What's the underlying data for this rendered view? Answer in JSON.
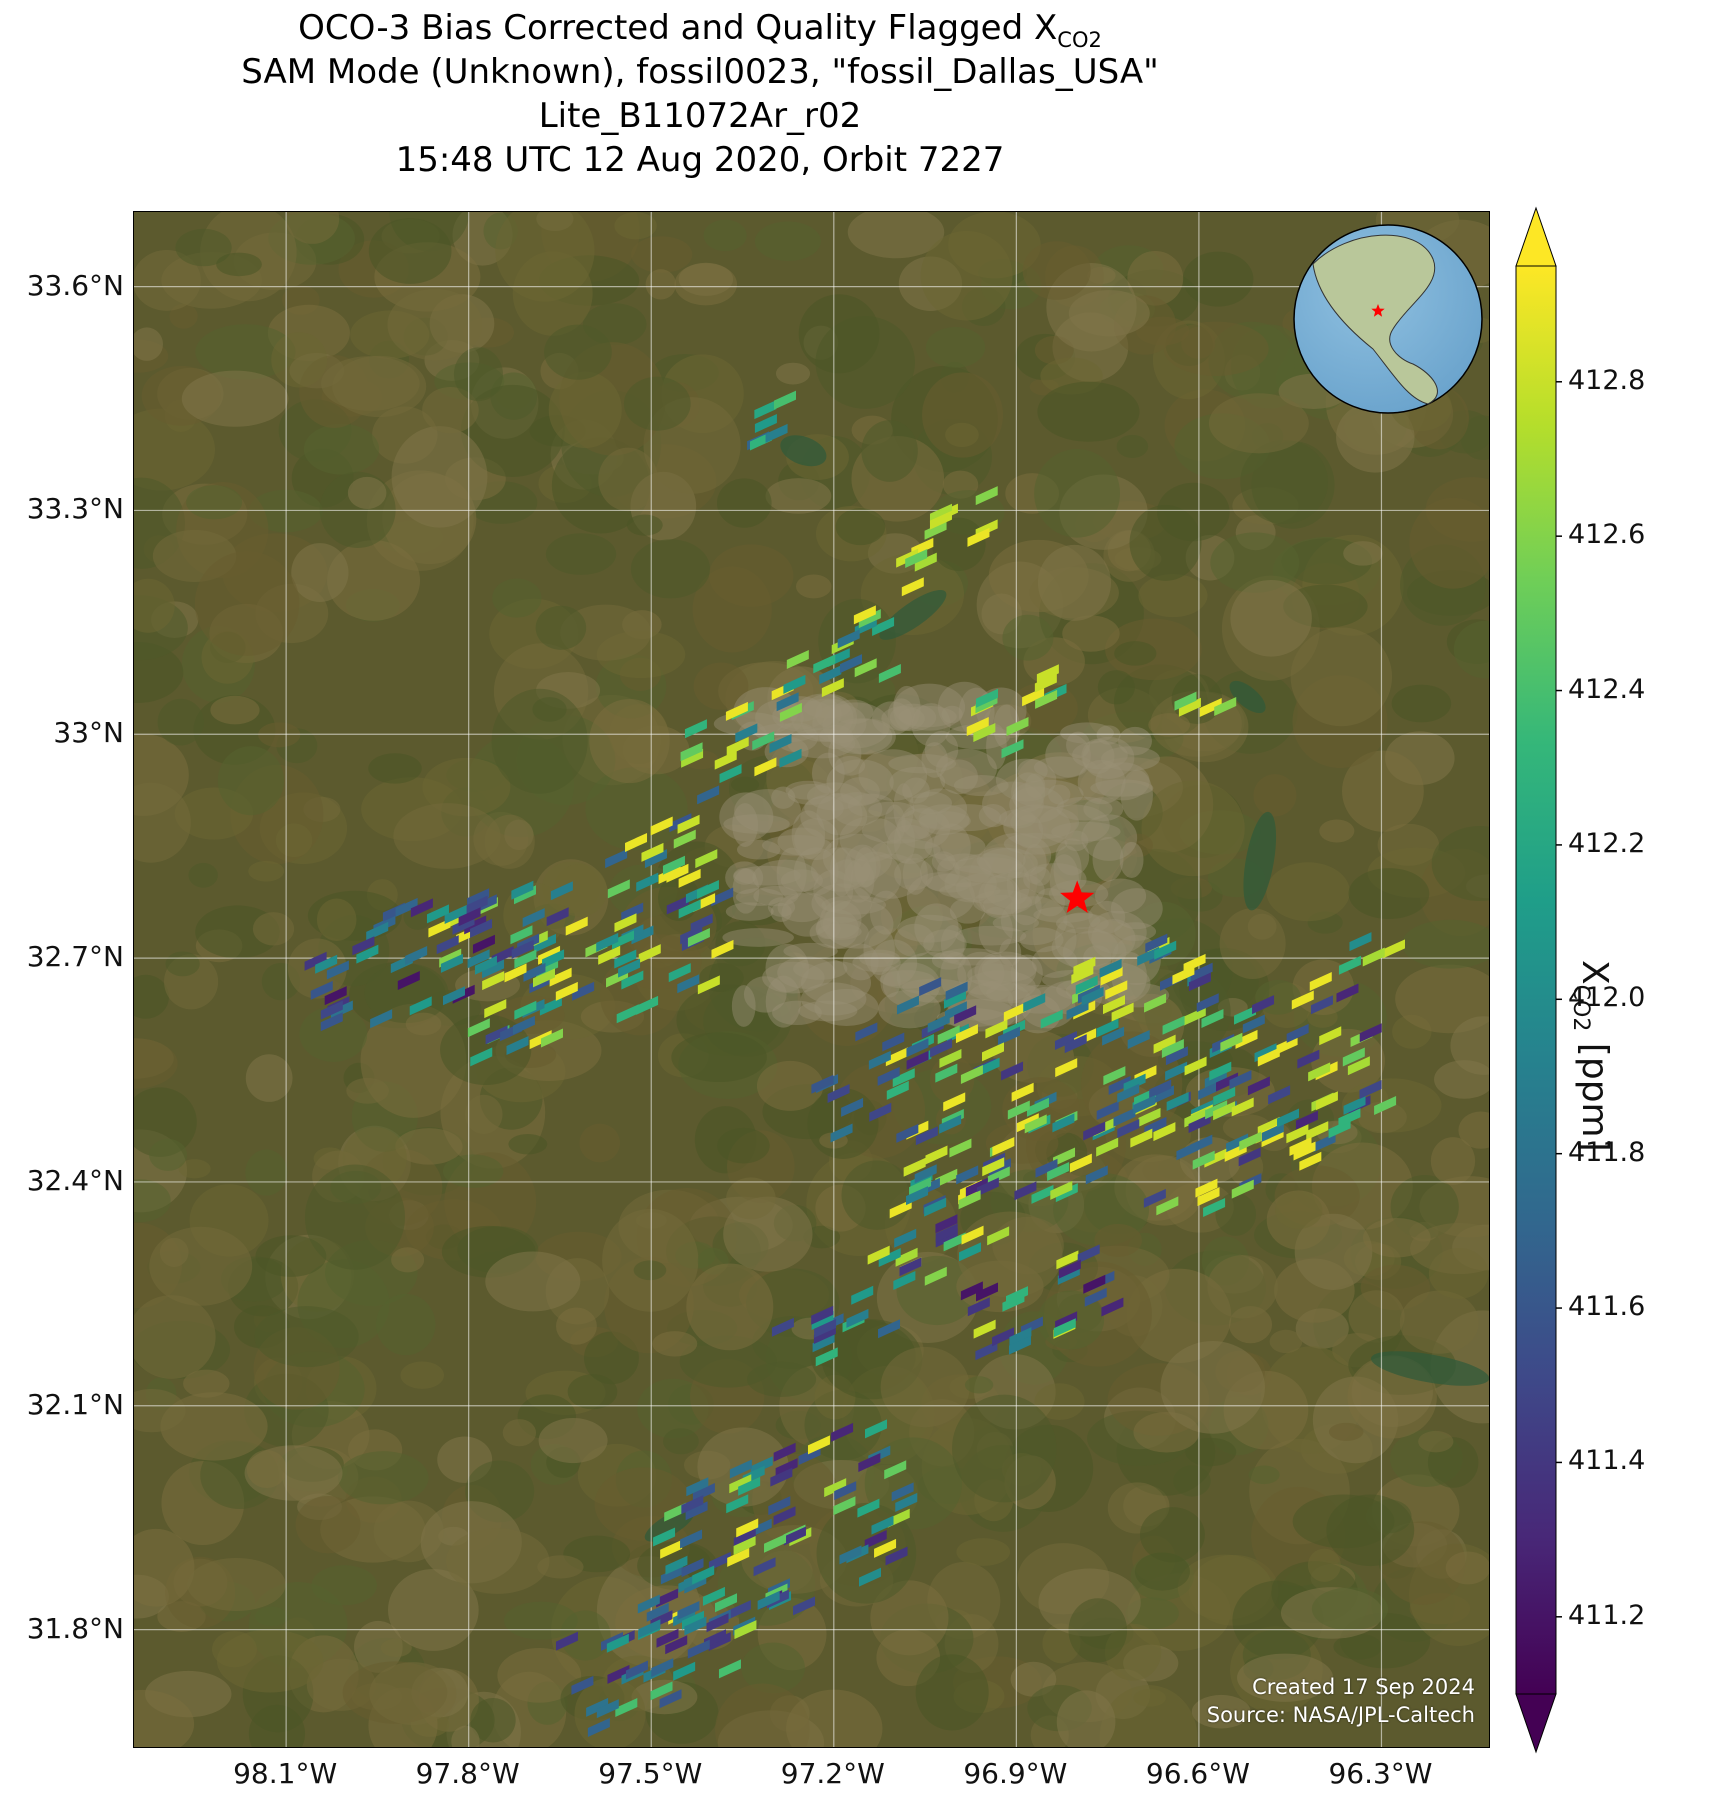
{
  "title": {
    "line1_prefix": "OCO-3 Bias Corrected and Quality Flagged X",
    "line1_sub": "CO2",
    "line2": "SAM Mode (Unknown), fossil0023, \"fossil_Dallas_USA\"",
    "line3": "Lite_B11072Ar_r02",
    "line4": "15:48 UTC 12 Aug 2020, Orbit 7227"
  },
  "map": {
    "lon_range": [
      -98.35,
      -96.12
    ],
    "lat_range": [
      31.64,
      33.7
    ],
    "lat_ticks": [
      {
        "value": 33.6,
        "label": "33.6°N"
      },
      {
        "value": 33.3,
        "label": "33.3°N"
      },
      {
        "value": 33.0,
        "label": "33°N"
      },
      {
        "value": 32.7,
        "label": "32.7°N"
      },
      {
        "value": 32.4,
        "label": "32.4°N"
      },
      {
        "value": 32.1,
        "label": "32.1°N"
      },
      {
        "value": 31.8,
        "label": "31.8°N"
      }
    ],
    "lon_ticks": [
      {
        "value": -98.1,
        "label": "98.1°W"
      },
      {
        "value": -97.8,
        "label": "97.8°W"
      },
      {
        "value": -97.5,
        "label": "97.5°W"
      },
      {
        "value": -97.2,
        "label": "97.2°W"
      },
      {
        "value": -96.9,
        "label": "96.9°W"
      },
      {
        "value": -96.6,
        "label": "96.6°W"
      },
      {
        "value": -96.3,
        "label": "96.3°W"
      }
    ],
    "gridlines": true,
    "target_marker": {
      "lon": -96.8,
      "lat": 32.78,
      "color": "#ff0000",
      "icon": "star-icon"
    },
    "inset_globe": {
      "placement": "top-right",
      "ocean_color": "#6aa3cc",
      "land_color": "#b9c79a",
      "marker_color": "#ff0000"
    },
    "credit_line1": "Created 17 Sep 2024",
    "credit_line2": "Source: NASA/JPL-Caltech",
    "colors": {
      "terrain_base": "#5c5a2e",
      "urban": "#9a9075",
      "water": "#2e5a3a",
      "gridline": "#ffffff"
    }
  },
  "colorbar": {
    "label_prefix": "X",
    "label_sub": "CO2",
    "label_suffix": " [ppm]",
    "colormap": "viridis",
    "min": 411.1,
    "max": 412.95,
    "extend": "both",
    "ticks": [
      {
        "value": 412.8,
        "label": "412.8"
      },
      {
        "value": 412.6,
        "label": "412.6"
      },
      {
        "value": 412.4,
        "label": "412.4"
      },
      {
        "value": 412.2,
        "label": "412.2"
      },
      {
        "value": 412.0,
        "label": "412.0"
      },
      {
        "value": 411.8,
        "label": "411.8"
      },
      {
        "value": 411.6,
        "label": "411.6"
      },
      {
        "value": 411.4,
        "label": "411.4"
      },
      {
        "value": 411.2,
        "label": "411.2"
      }
    ]
  },
  "soundings": [
    {
      "name": "n-lake",
      "lon": -97.32,
      "lat": 33.43,
      "n": 6,
      "seed": 3,
      "values": [
        411.7,
        412.1,
        412.3,
        412.2,
        411.9,
        412.4
      ]
    },
    {
      "name": "n-yellow",
      "lon": -97.03,
      "lat": 33.26,
      "n": 12,
      "seed": 7,
      "values": [
        412.8,
        412.9,
        412.7,
        412.8,
        412.6,
        412.9,
        412.8,
        412.7,
        412.5,
        412.8,
        412.9,
        412.6
      ]
    },
    {
      "name": "n-mid",
      "lon": -97.2,
      "lat": 33.1,
      "n": 14,
      "seed": 11,
      "values": [
        412.2,
        412.6,
        412.0,
        412.8,
        411.9,
        412.4,
        412.7,
        412.1,
        411.8,
        412.5,
        412.9,
        412.3,
        411.7,
        412.6
      ]
    },
    {
      "name": "n-west",
      "lon": -97.36,
      "lat": 32.99,
      "n": 18,
      "seed": 13,
      "values": [
        412.9,
        412.4,
        411.8,
        412.7,
        412.2,
        412.9,
        411.9,
        412.5,
        412.8,
        412.1,
        412.3,
        412.9,
        411.7,
        412.6,
        412.0,
        412.8,
        412.4,
        411.9
      ]
    },
    {
      "name": "n-east",
      "lon": -96.92,
      "lat": 33.02,
      "n": 12,
      "seed": 17,
      "values": [
        412.8,
        412.4,
        412.9,
        412.6,
        412.8,
        412.2,
        412.7,
        412.5,
        412.9,
        412.3,
        412.8,
        412.6
      ]
    },
    {
      "name": "ne-pair",
      "lon": -96.61,
      "lat": 33.04,
      "n": 4,
      "seed": 19,
      "values": [
        412.9,
        412.6,
        412.8,
        412.5
      ]
    },
    {
      "name": "w-main",
      "lon": -97.62,
      "lat": 32.72,
      "n": 90,
      "seed": 23,
      "values": [
        412.9,
        411.9,
        412.6,
        411.6,
        412.8,
        412.2,
        411.5,
        412.4,
        412.9,
        411.8,
        412.7,
        412.0,
        411.4,
        412.5,
        412.9,
        412.1,
        411.7,
        412.8,
        412.3,
        411.6,
        412.9,
        412.0,
        411.5,
        412.6,
        412.8,
        411.9,
        412.4,
        412.9,
        411.6,
        412.2
      ]
    },
    {
      "name": "w-tail",
      "lon": -97.92,
      "lat": 32.69,
      "n": 34,
      "seed": 29,
      "values": [
        411.2,
        411.5,
        411.9,
        412.0,
        411.4,
        411.7,
        412.1,
        411.3,
        411.6,
        411.8
      ]
    },
    {
      "name": "center",
      "lon": -96.84,
      "lat": 32.53,
      "n": 120,
      "seed": 31,
      "values": [
        412.9,
        412.2,
        411.6,
        412.7,
        411.9,
        412.4,
        412.8,
        411.5,
        412.1,
        412.6,
        411.8,
        412.9,
        412.0,
        411.4,
        412.5,
        412.8,
        411.7,
        412.3,
        412.9,
        411.6
      ]
    },
    {
      "name": "east",
      "lon": -96.53,
      "lat": 32.51,
      "n": 80,
      "seed": 37,
      "values": [
        412.9,
        412.8,
        411.6,
        412.7,
        411.4,
        412.9,
        411.8,
        412.6,
        412.0,
        411.5,
        412.8,
        412.3,
        411.3,
        412.9,
        411.7,
        412.5
      ]
    },
    {
      "name": "mid-south",
      "lon": -97.05,
      "lat": 32.34,
      "n": 24,
      "seed": 41,
      "values": [
        412.8,
        411.4,
        412.6,
        412.1,
        411.7,
        412.9,
        411.3,
        412.4,
        411.9,
        412.7
      ]
    },
    {
      "name": "mid-south2",
      "lon": -96.88,
      "lat": 32.23,
      "n": 22,
      "seed": 43,
      "values": [
        411.3,
        411.6,
        412.8,
        411.2,
        411.9,
        412.3,
        411.5,
        411.4
      ]
    },
    {
      "name": "sw1",
      "lon": -97.22,
      "lat": 32.21,
      "n": 12,
      "seed": 47,
      "values": [
        411.7,
        412.1,
        411.5,
        411.9,
        412.3,
        411.4
      ]
    },
    {
      "name": "south",
      "lon": -97.3,
      "lat": 31.93,
      "n": 70,
      "seed": 53,
      "values": [
        412.9,
        411.4,
        411.7,
        412.5,
        411.3,
        411.9,
        412.2,
        411.6,
        412.7,
        411.5,
        412.0,
        411.8
      ]
    },
    {
      "name": "south-tail",
      "lon": -97.5,
      "lat": 31.77,
      "n": 36,
      "seed": 59,
      "values": [
        411.6,
        411.9,
        411.4,
        412.1,
        411.7,
        411.3,
        412.4,
        411.8
      ]
    },
    {
      "name": "scattered",
      "lon": -97.08,
      "lat": 32.61,
      "n": 14,
      "seed": 61,
      "values": [
        411.6,
        411.8,
        411.3,
        412.1,
        411.7,
        411.5
      ]
    },
    {
      "name": "far-east",
      "lon": -96.32,
      "lat": 32.72,
      "n": 3,
      "seed": 67,
      "values": [
        412.8,
        412.0,
        412.7
      ]
    },
    {
      "name": "dfw-west",
      "lon": -97.16,
      "lat": 32.52,
      "n": 8,
      "seed": 71,
      "values": [
        411.7,
        411.6,
        411.5,
        411.8
      ]
    }
  ]
}
